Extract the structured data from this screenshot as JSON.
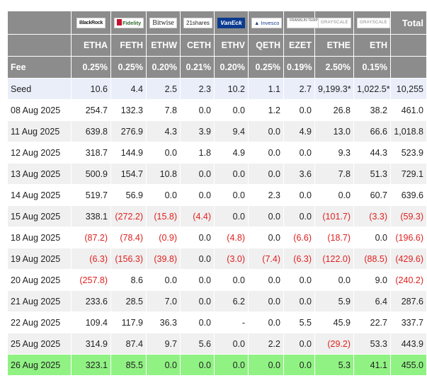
{
  "header": {
    "issuers": [
      "BlackRock",
      "Fidelity",
      "Bitwise",
      "21shares",
      "VanEck",
      "Invesco",
      "FRANKLIN TEMPLETON",
      "GRAYSCALE",
      "GRAYSCALE"
    ],
    "total_label": "Total",
    "tickers": [
      "ETHA",
      "FETH",
      "ETHW",
      "CETH",
      "ETHV",
      "QETH",
      "EZET",
      "ETHE",
      "ETH"
    ],
    "fee_label": "Fee",
    "fees": [
      "0.25%",
      "0.25%",
      "0.20%",
      "0.21%",
      "0.20%",
      "0.25%",
      "0.19%",
      "2.50%",
      "0.15%"
    ]
  },
  "rows": [
    {
      "label": "Seed",
      "cells": [
        "10.6",
        "4.4",
        "2.5",
        "2.3",
        "10.2",
        "1.1",
        "2.7",
        "9,199.3*",
        "1,022.5*",
        "10,255"
      ]
    },
    {
      "label": "08 Aug 2025",
      "cells": [
        "254.7",
        "132.3",
        "7.8",
        "0.0",
        "0.0",
        "1.2",
        "0.0",
        "26.8",
        "38.2",
        "461.0"
      ]
    },
    {
      "label": "11 Aug 2025",
      "cells": [
        "639.8",
        "276.9",
        "4.3",
        "3.9",
        "9.4",
        "0.0",
        "4.9",
        "13.0",
        "66.6",
        "1,018.8"
      ]
    },
    {
      "label": "12 Aug 2025",
      "cells": [
        "318.7",
        "144.9",
        "0.0",
        "1.8",
        "4.9",
        "0.0",
        "0.0",
        "9.3",
        "44.3",
        "523.9"
      ]
    },
    {
      "label": "13 Aug 2025",
      "cells": [
        "500.9",
        "154.7",
        "10.8",
        "0.0",
        "0.0",
        "0.0",
        "3.6",
        "7.8",
        "51.3",
        "729.1"
      ]
    },
    {
      "label": "14 Aug 2025",
      "cells": [
        "519.7",
        "56.9",
        "0.0",
        "0.0",
        "0.0",
        "2.3",
        "0.0",
        "0.0",
        "60.7",
        "639.6"
      ]
    },
    {
      "label": "15 Aug 2025",
      "cells": [
        "338.1",
        "(272.2)",
        "(15.8)",
        "(4.4)",
        "0.0",
        "0.0",
        "0.0",
        "(101.7)",
        "(3.3)",
        "(59.3)"
      ]
    },
    {
      "label": "18 Aug 2025",
      "cells": [
        "(87.2)",
        "(78.4)",
        "(0.9)",
        "0.0",
        "(4.8)",
        "0.0",
        "(6.6)",
        "(18.7)",
        "0.0",
        "(196.6)"
      ]
    },
    {
      "label": "19 Aug 2025",
      "cells": [
        "(6.3)",
        "(156.3)",
        "(39.8)",
        "0.0",
        "(3.0)",
        "(7.4)",
        "(6.3)",
        "(122.0)",
        "(88.5)",
        "(429.6)"
      ]
    },
    {
      "label": "20 Aug 2025",
      "cells": [
        "(257.8)",
        "8.6",
        "0.0",
        "0.0",
        "0.0",
        "0.0",
        "0.0",
        "0.0",
        "9.0",
        "(240.2)"
      ]
    },
    {
      "label": "21 Aug 2025",
      "cells": [
        "233.6",
        "28.5",
        "7.0",
        "0.0",
        "6.2",
        "0.0",
        "0.0",
        "5.9",
        "6.4",
        "287.6"
      ]
    },
    {
      "label": "22 Aug 2025",
      "cells": [
        "109.4",
        "117.9",
        "36.3",
        "0.0",
        "-",
        "0.0",
        "5.5",
        "45.9",
        "22.7",
        "337.7"
      ]
    },
    {
      "label": "25 Aug 2025",
      "cells": [
        "314.9",
        "87.4",
        "9.7",
        "5.6",
        "0.0",
        "2.2",
        "0.0",
        "(29.2)",
        "53.3",
        "443.9"
      ]
    },
    {
      "label": "26 Aug 2025",
      "cells": [
        "323.1",
        "85.5",
        "0.0",
        "0.0",
        "0.0",
        "0.0",
        "0.0",
        "5.3",
        "41.1",
        "455.0"
      ]
    }
  ],
  "colors": {
    "header_bg": "#8c8c8c",
    "seed_bg": "#e9eef9",
    "alt_bg": "#f0f0f0",
    "last_row_bg": "#90f283",
    "negative": "#e02020"
  }
}
